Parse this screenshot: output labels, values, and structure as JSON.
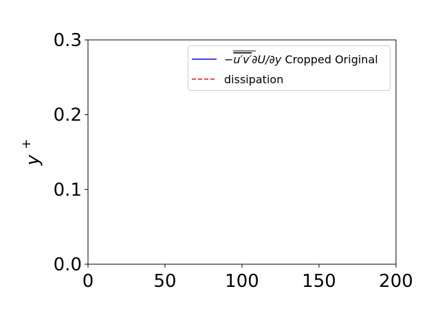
{
  "chart_data": {
    "type": "line",
    "title": "",
    "xlabel": "",
    "ylabel": "y⁺",
    "xlim": [
      0,
      200
    ],
    "ylim": [
      0.0,
      0.3
    ],
    "xticks": [
      "0",
      "50",
      "100",
      "150",
      "200"
    ],
    "yticks": [
      "0.0",
      "0.1",
      "0.2",
      "0.3"
    ],
    "grid": false,
    "legend_position": "top-right",
    "series": [
      {
        "name": "−u′v′∂U/∂y Cropped Original",
        "name_parts": {
          "prefix": "−",
          "overlined": "u′v′",
          "suffix": "∂U/∂y",
          "tail": " Cropped Original"
        },
        "color": "#0000ff",
        "linestyle": "solid",
        "points": []
      },
      {
        "name": "dissipation",
        "color": "#ff0000",
        "linestyle": "dashed",
        "points": []
      }
    ]
  }
}
